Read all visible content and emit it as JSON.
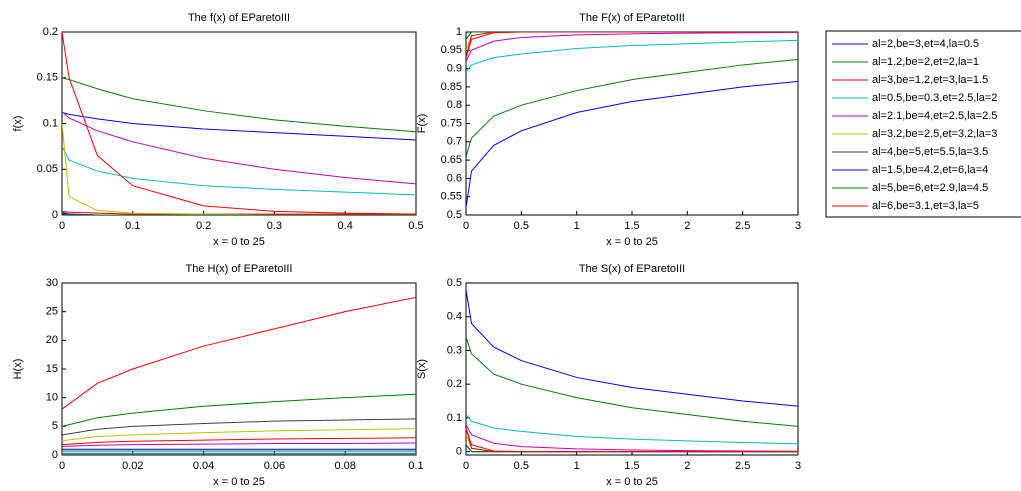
{
  "chart_data": [
    {
      "type": "line",
      "title": "The f(x) of EParetoIII",
      "xlabel": "x = 0 to 25",
      "ylabel": "f(x)",
      "xlim": [
        0,
        0.5
      ],
      "ylim": [
        0,
        0.2
      ],
      "xticks": [
        0,
        0.1,
        0.2,
        0.3,
        0.4,
        0.5
      ],
      "yticks": [
        0,
        0.05,
        0.1,
        0.15,
        0.2
      ],
      "x": [
        0,
        0.01,
        0.05,
        0.1,
        0.2,
        0.3,
        0.4,
        0.5
      ],
      "series": [
        {
          "name": "al=2,be=3,et=4,la=0.5",
          "color": "#0000ff",
          "values": [
            0.112,
            0.11,
            0.105,
            0.1,
            0.094,
            0.09,
            0.086,
            0.082
          ]
        },
        {
          "name": "al=1.2,be=2,et=2,la=1",
          "color": "#008000",
          "values": [
            0.15,
            0.148,
            0.138,
            0.127,
            0.114,
            0.104,
            0.097,
            0.091
          ]
        },
        {
          "name": "al=3,be=1.2,et=3,la=1.5",
          "color": "#ff0000",
          "values": [
            0.004,
            0.003,
            0.002,
            0.001,
            0.001,
            0.001,
            0.001,
            0.001
          ]
        },
        {
          "name": "al=0.5,be=0.3,et=2.5,la=2",
          "color": "#00bfbf",
          "values": [
            0.075,
            0.06,
            0.048,
            0.04,
            0.032,
            0.028,
            0.025,
            0.022
          ]
        },
        {
          "name": "al=2.1,be=4,et=2.5,la=2.5",
          "color": "#bf00bf",
          "values": [
            0.113,
            0.106,
            0.092,
            0.08,
            0.062,
            0.05,
            0.041,
            0.034
          ]
        },
        {
          "name": "al=3.2,be=2.5,et=3.2,la=3",
          "color": "#bfbf00",
          "values": [
            0.1,
            0.02,
            0.005,
            0.002,
            0.001,
            0,
            0,
            0
          ]
        },
        {
          "name": "al=4,be=5,et=5.5,la=3.5",
          "color": "#404040",
          "values": [
            0.003,
            0.001,
            0,
            0,
            0,
            0,
            0,
            0
          ]
        },
        {
          "name": "al=1.5,be=4.2,et=6,la=4",
          "color": "#0000ff",
          "values": [
            0.002,
            0.001,
            0,
            0,
            0,
            0,
            0,
            0
          ]
        },
        {
          "name": "al=5,be=6,et=2.9,la=4.5",
          "color": "#008000",
          "values": [
            0.001,
            0,
            0,
            0,
            0,
            0,
            0,
            0
          ]
        },
        {
          "name": "al=6,be=3.1,et=3,la=5",
          "color": "#ff0000",
          "values": [
            0.2,
            0.15,
            0.065,
            0.032,
            0.01,
            0.004,
            0.002,
            0.001
          ]
        }
      ]
    },
    {
      "type": "line",
      "title": "The F(x) of EParetoIII",
      "xlabel": "x = 0 to 25",
      "ylabel": "F(x)",
      "xlim": [
        0,
        3
      ],
      "ylim": [
        0.5,
        1
      ],
      "xticks": [
        0,
        0.5,
        1,
        1.5,
        2,
        2.5,
        3
      ],
      "yticks": [
        0.5,
        0.55,
        0.6,
        0.65,
        0.7,
        0.75,
        0.8,
        0.85,
        0.9,
        0.95,
        1
      ],
      "x": [
        0,
        0.05,
        0.25,
        0.5,
        1,
        1.5,
        2,
        2.5,
        3
      ],
      "series": [
        {
          "color": "#0000ff",
          "values": [
            0.52,
            0.62,
            0.69,
            0.73,
            0.78,
            0.81,
            0.83,
            0.85,
            0.865
          ]
        },
        {
          "color": "#008000",
          "values": [
            0.66,
            0.71,
            0.77,
            0.8,
            0.84,
            0.87,
            0.89,
            0.91,
            0.925
          ]
        },
        {
          "color": "#ff0000",
          "values": [
            0.93,
            0.98,
            0.998,
            1,
            1,
            1,
            1,
            1,
            1
          ]
        },
        {
          "color": "#00bfbf",
          "values": [
            0.89,
            0.91,
            0.93,
            0.94,
            0.955,
            0.963,
            0.968,
            0.973,
            0.977
          ]
        },
        {
          "color": "#bf00bf",
          "values": [
            0.92,
            0.95,
            0.975,
            0.985,
            0.992,
            0.995,
            0.997,
            0.998,
            0.999
          ]
        },
        {
          "color": "#bfbf00",
          "values": [
            0.95,
            0.99,
            1,
            1,
            1,
            1,
            1,
            1,
            1
          ]
        },
        {
          "color": "#404040",
          "values": [
            0.98,
            1,
            1,
            1,
            1,
            1,
            1,
            1,
            1
          ]
        },
        {
          "color": "#0000ff",
          "values": [
            0.98,
            1,
            1,
            1,
            1,
            1,
            1,
            1,
            1
          ]
        },
        {
          "color": "#008000",
          "values": [
            0.98,
            1,
            1,
            1,
            1,
            1,
            1,
            1,
            1
          ]
        },
        {
          "color": "#ff0000",
          "values": [
            0.93,
            0.99,
            1,
            1,
            1,
            1,
            1,
            1,
            1
          ]
        }
      ]
    },
    {
      "type": "line",
      "title": "The H(x) of EParetoIII",
      "xlabel": "x = 0 to 25",
      "ylabel": "H(x)",
      "xlim": [
        0,
        0.1
      ],
      "ylim": [
        0,
        30
      ],
      "xticks": [
        0,
        0.02,
        0.04,
        0.06,
        0.08,
        0.1
      ],
      "yticks": [
        0,
        5,
        10,
        15,
        20,
        25,
        30
      ],
      "x": [
        0,
        0.01,
        0.02,
        0.04,
        0.06,
        0.08,
        0.1
      ],
      "series": [
        {
          "color": "#0000ff",
          "values": [
            0.25,
            0.25,
            0.25,
            0.25,
            0.25,
            0.25,
            0.25
          ]
        },
        {
          "color": "#008000",
          "values": [
            0.7,
            0.7,
            0.7,
            0.7,
            0.7,
            0.7,
            0.7
          ]
        },
        {
          "color": "#ff0000",
          "values": [
            1.8,
            2.2,
            2.4,
            2.6,
            2.8,
            2.9,
            3
          ]
        },
        {
          "color": "#00bfbf",
          "values": [
            0.3,
            0.3,
            0.3,
            0.3,
            0.3,
            0.3,
            0.3
          ]
        },
        {
          "color": "#bf00bf",
          "values": [
            1.5,
            1.7,
            1.8,
            1.9,
            2,
            2,
            2.1
          ]
        },
        {
          "color": "#bfbf00",
          "values": [
            2.5,
            3.2,
            3.5,
            3.9,
            4.2,
            4.4,
            4.6
          ]
        },
        {
          "color": "#404040",
          "values": [
            3.5,
            4.5,
            5,
            5.5,
            5.9,
            6.1,
            6.3
          ]
        },
        {
          "color": "#0000ff",
          "values": [
            1,
            1,
            1,
            1,
            1,
            1,
            1
          ]
        },
        {
          "color": "#008000",
          "values": [
            5,
            6.5,
            7.3,
            8.5,
            9.3,
            10,
            10.6
          ]
        },
        {
          "color": "#ff0000",
          "values": [
            8,
            12.5,
            15,
            19,
            22,
            25,
            27.5
          ]
        }
      ]
    },
    {
      "type": "line",
      "title": "The S(x) of EParetoIII",
      "xlabel": "x = 0 to 25",
      "ylabel": "S(x)",
      "xlim": [
        0,
        3
      ],
      "ylim": [
        -0.01,
        0.5
      ],
      "xticks": [
        0,
        0.5,
        1,
        1.5,
        2,
        2.5,
        3
      ],
      "yticks": [
        0,
        0.1,
        0.2,
        0.3,
        0.4,
        0.5
      ],
      "x": [
        0,
        0.05,
        0.25,
        0.5,
        1,
        1.5,
        2,
        2.5,
        3
      ],
      "series": [
        {
          "color": "#0000ff",
          "values": [
            0.48,
            0.38,
            0.31,
            0.27,
            0.22,
            0.19,
            0.17,
            0.15,
            0.135
          ]
        },
        {
          "color": "#008000",
          "values": [
            0.34,
            0.29,
            0.23,
            0.2,
            0.16,
            0.13,
            0.11,
            0.09,
            0.075
          ]
        },
        {
          "color": "#ff0000",
          "values": [
            0.07,
            0.02,
            0.002,
            0,
            0,
            0,
            0,
            0,
            0
          ]
        },
        {
          "color": "#00bfbf",
          "values": [
            0.11,
            0.09,
            0.07,
            0.06,
            0.045,
            0.037,
            0.032,
            0.027,
            0.023
          ]
        },
        {
          "color": "#bf00bf",
          "values": [
            0.08,
            0.05,
            0.025,
            0.015,
            0.008,
            0.005,
            0.003,
            0.002,
            0.001
          ]
        },
        {
          "color": "#bfbf00",
          "values": [
            0.05,
            0.01,
            0,
            0,
            0,
            0,
            0,
            0,
            0
          ]
        },
        {
          "color": "#404040",
          "values": [
            0.02,
            0,
            0,
            0,
            0,
            0,
            0,
            0,
            0
          ]
        },
        {
          "color": "#0000ff",
          "values": [
            0.02,
            0,
            0,
            0,
            0,
            0,
            0,
            0,
            0
          ]
        },
        {
          "color": "#008000",
          "values": [
            0.02,
            0,
            0,
            0,
            0,
            0,
            0,
            0,
            0
          ]
        },
        {
          "color": "#ff0000",
          "values": [
            0.07,
            0.01,
            0,
            0,
            0,
            0,
            0,
            0,
            0
          ]
        }
      ]
    }
  ]
}
